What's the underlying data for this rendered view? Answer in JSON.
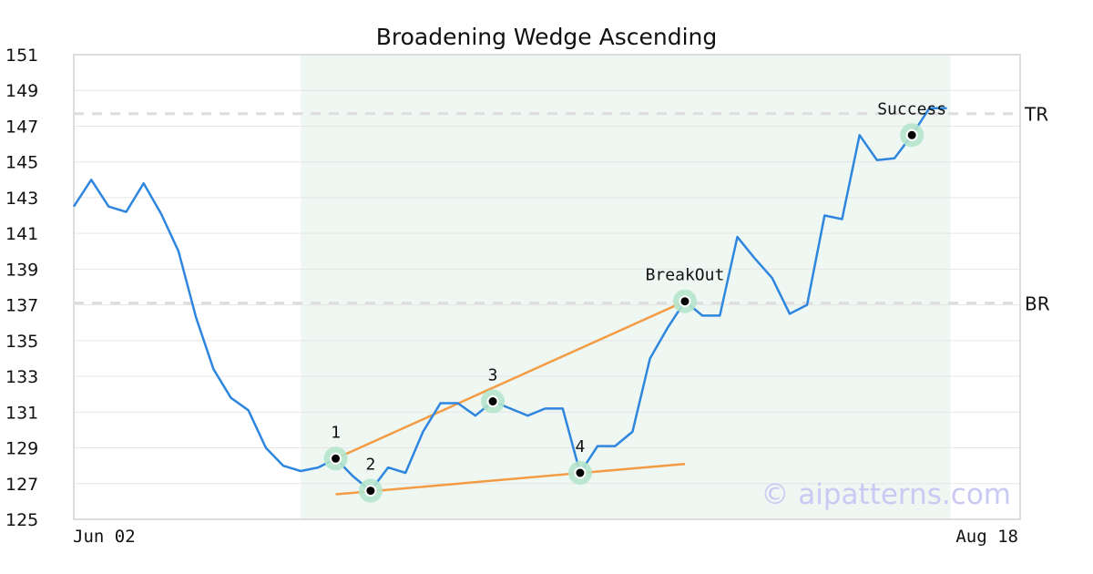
{
  "chart_data": {
    "type": "line",
    "title": "Broadening Wedge Ascending",
    "x_start_label": "Jun 02",
    "x_end_label": "Aug 18",
    "ylim": [
      125,
      151
    ],
    "yticks": [
      125,
      127,
      129,
      131,
      133,
      135,
      137,
      139,
      141,
      143,
      145,
      147,
      149,
      151
    ],
    "grid": true,
    "series": [
      {
        "values": [
          142.5,
          144.0,
          142.5,
          142.2,
          143.8,
          142.1,
          140.0,
          136.3,
          133.4,
          131.8,
          131.1,
          129.0,
          128.0,
          127.7,
          127.9,
          128.4,
          127.4,
          126.6,
          127.9,
          127.6,
          129.9,
          131.5,
          131.5,
          130.8,
          131.6,
          131.2,
          130.8,
          131.2,
          131.2,
          127.6,
          129.1,
          129.1,
          129.9,
          134.0,
          135.7,
          137.2,
          136.4,
          136.4,
          140.8,
          139.6,
          138.5,
          136.5,
          137.0,
          142.0,
          141.8,
          146.5,
          145.1,
          145.2,
          146.5,
          148.0,
          148.0
        ]
      }
    ],
    "highlight_range": {
      "start_index": 13,
      "end_index": 50
    },
    "reference_lines": [
      {
        "label": "TR",
        "value": 147.7
      },
      {
        "label": "BR",
        "value": 137.1
      }
    ],
    "annotations": [
      {
        "label": "1",
        "index": 15,
        "value": 128.4
      },
      {
        "label": "2",
        "index": 17,
        "value": 126.6
      },
      {
        "label": "3",
        "index": 24,
        "value": 131.6
      },
      {
        "label": "4",
        "index": 29,
        "value": 127.6
      },
      {
        "label": "BreakOut",
        "index": 35,
        "value": 137.2
      },
      {
        "label": "Success",
        "index": 48,
        "value": 146.5
      }
    ],
    "trendlines": [
      {
        "from": [
          15,
          128.4
        ],
        "to": [
          35,
          137.2
        ]
      },
      {
        "from": [
          15,
          126.4
        ],
        "to": [
          35,
          128.1
        ]
      }
    ],
    "colors": {
      "line": "#2e86de",
      "trendline": "#f39c45",
      "highlight": "#eef7f2",
      "marker_halo": "#b5e4cc",
      "reference_line": "#dddddd",
      "grid": "#e6e6e6",
      "watermark": "#c9c9f4"
    }
  },
  "watermark": "© aipatterns.com"
}
